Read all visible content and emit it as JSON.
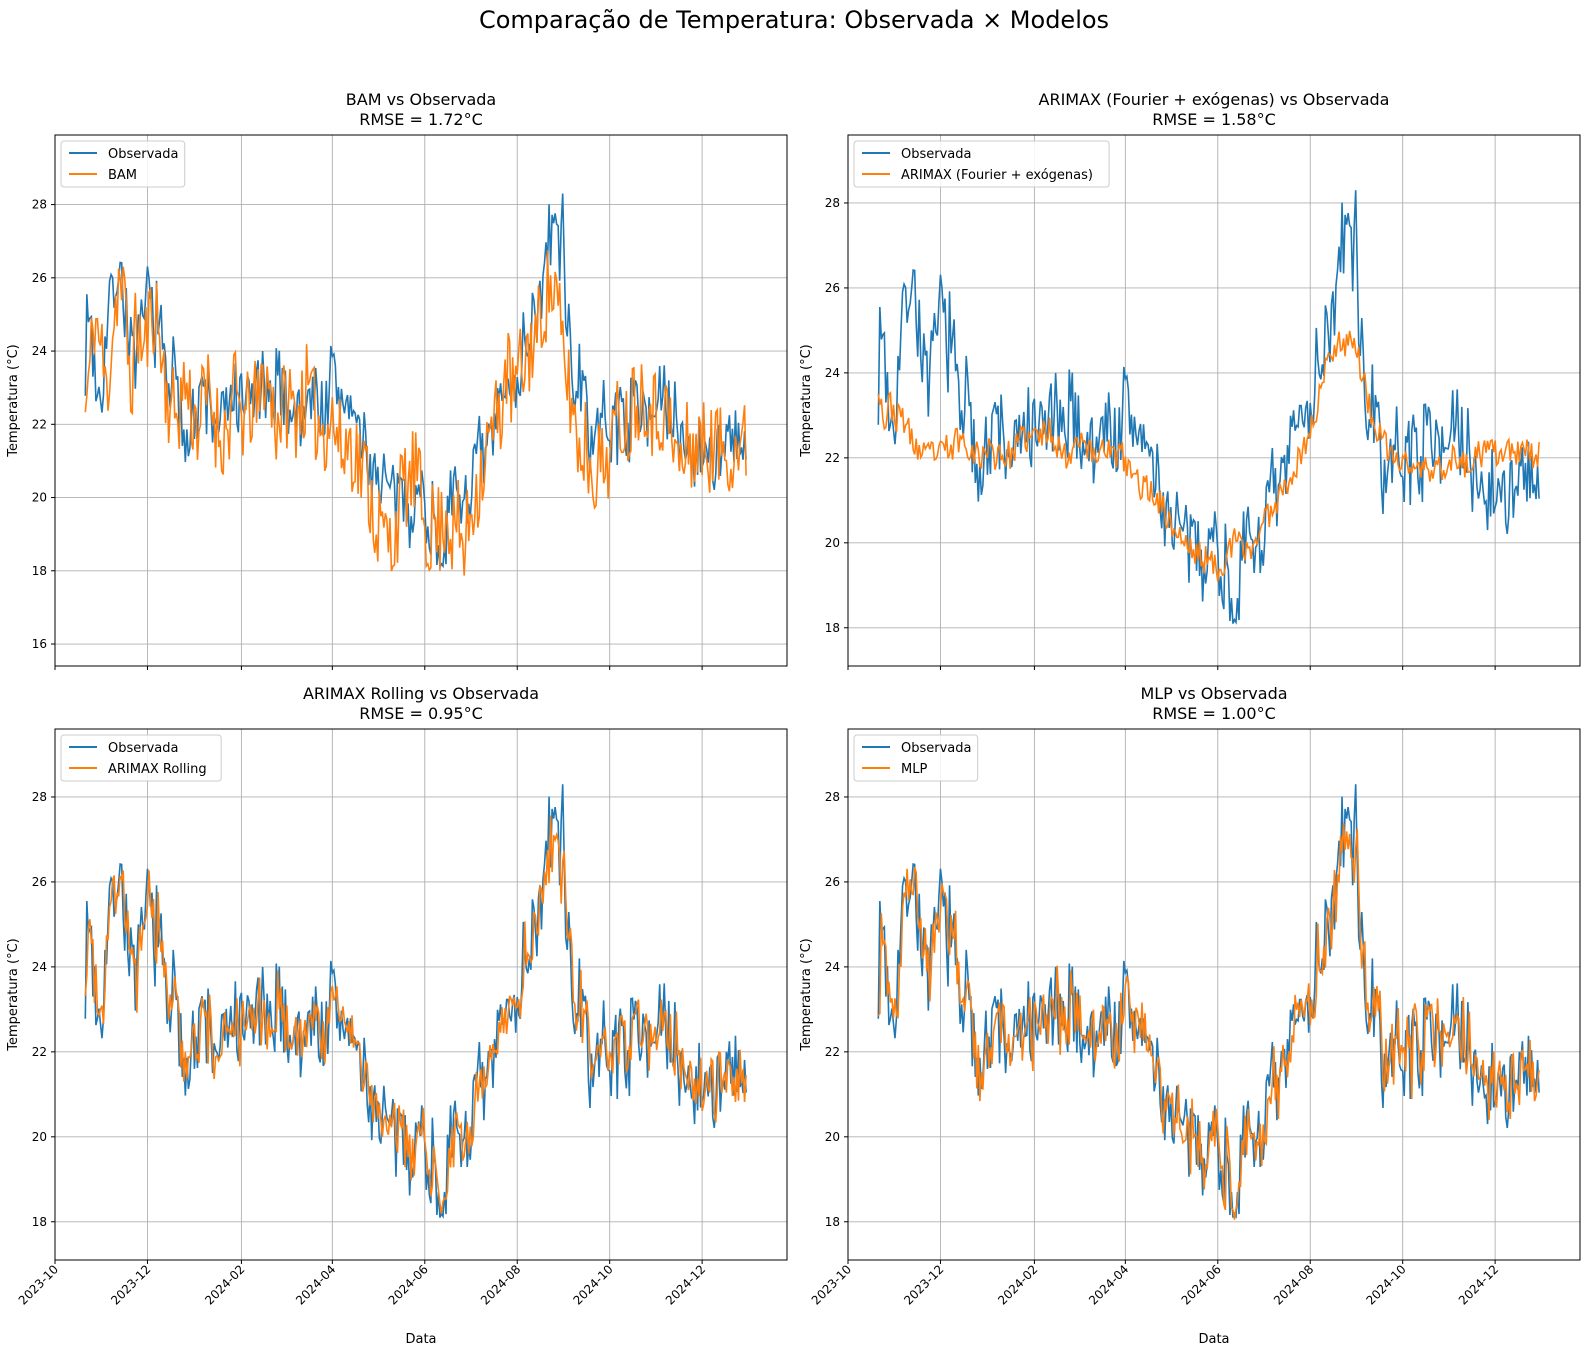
{
  "figure": {
    "title": "Comparação de Temperatura: Observada × Modelos",
    "colors": {
      "observed": "#1f77b4",
      "model": "#ff7f0e",
      "grid": "#b0b0b0"
    }
  },
  "chart_data": [
    {
      "type": "line",
      "title": "BAM vs Observada",
      "subtitle": "RMSE = 1.72°C",
      "xlabel": "",
      "ylabel": "Temperatura (°C)",
      "xlim": [
        "2023-10-01",
        "2025-01-26"
      ],
      "ylim": [
        15.4,
        29.9
      ],
      "yticks": [
        16,
        18,
        20,
        22,
        24,
        26,
        28
      ],
      "xticks": [
        "2023-10",
        "2023-12",
        "2024-02",
        "2024-04",
        "2024-06",
        "2024-08",
        "2024-10",
        "2024-12"
      ],
      "grid": true,
      "legend_position": "top-left",
      "legend": [
        "Observada",
        "BAM"
      ],
      "model_series_name": "BAM",
      "x_start": "2023-10-21",
      "x_end": "2024-12-30",
      "observed_anchors": [
        [
          0,
          24.1
        ],
        [
          3,
          25.2
        ],
        [
          6,
          23.5
        ],
        [
          10,
          22.8
        ],
        [
          14,
          24.5
        ],
        [
          18,
          25.8
        ],
        [
          22,
          26.3
        ],
        [
          26,
          25.4
        ],
        [
          30,
          24.2
        ],
        [
          34,
          23.5
        ],
        [
          38,
          24.8
        ],
        [
          42,
          25.6
        ],
        [
          46,
          24.9
        ],
        [
          50,
          24.4
        ],
        [
          54,
          22.9
        ],
        [
          58,
          23.5
        ],
        [
          62,
          22.1
        ],
        [
          66,
          21.8
        ],
        [
          70,
          22.6
        ],
        [
          74,
          22.0
        ],
        [
          78,
          23.1
        ],
        [
          82,
          22.4
        ],
        [
          86,
          21.8
        ],
        [
          90,
          22.3
        ],
        [
          94,
          22.1
        ],
        [
          98,
          23.0
        ],
        [
          102,
          22.2
        ],
        [
          106,
          22.8
        ],
        [
          110,
          22.5
        ],
        [
          114,
          23.2
        ],
        [
          118,
          22.8
        ],
        [
          122,
          22.0
        ],
        [
          126,
          23.5
        ],
        [
          130,
          23.0
        ],
        [
          134,
          22.5
        ],
        [
          138,
          22.4
        ],
        [
          142,
          22.1
        ],
        [
          146,
          22.6
        ],
        [
          150,
          23.0
        ],
        [
          154,
          22.5
        ],
        [
          158,
          22.4
        ],
        [
          162,
          23.2
        ],
        [
          166,
          23.0
        ],
        [
          170,
          22.5
        ],
        [
          174,
          22.8
        ],
        [
          178,
          21.9
        ],
        [
          182,
          21.6
        ],
        [
          186,
          21.1
        ],
        [
          190,
          20.8
        ],
        [
          194,
          20.6
        ],
        [
          198,
          20.3
        ],
        [
          202,
          19.8
        ],
        [
          206,
          20.0
        ],
        [
          210,
          20.1
        ],
        [
          214,
          19.7
        ],
        [
          218,
          19.9
        ],
        [
          222,
          20.2
        ],
        [
          226,
          19.5
        ],
        [
          230,
          19.2
        ],
        [
          234,
          18.8
        ],
        [
          238,
          19.1
        ],
        [
          242,
          19.5
        ],
        [
          246,
          20.2
        ],
        [
          250,
          19.9
        ],
        [
          254,
          20.4
        ],
        [
          258,
          20.8
        ],
        [
          262,
          21.2
        ],
        [
          266,
          21.9
        ],
        [
          270,
          22.4
        ],
        [
          274,
          22.5
        ],
        [
          278,
          22.8
        ],
        [
          282,
          23.4
        ],
        [
          286,
          23.2
        ],
        [
          290,
          24.4
        ],
        [
          294,
          24.7
        ],
        [
          298,
          25.2
        ],
        [
          302,
          25.9
        ],
        [
          306,
          26.2
        ],
        [
          310,
          26.3
        ],
        [
          314,
          25.1
        ],
        [
          318,
          24.5
        ],
        [
          322,
          23.5
        ],
        [
          326,
          22.9
        ],
        [
          330,
          22.4
        ],
        [
          334,
          21.8
        ],
        [
          338,
          21.7
        ],
        [
          342,
          22.1
        ],
        [
          346,
          21.9
        ],
        [
          350,
          22.2
        ],
        [
          354,
          22.4
        ],
        [
          358,
          22.0
        ],
        [
          362,
          22.5
        ],
        [
          366,
          22.8
        ],
        [
          370,
          22.7
        ],
        [
          374,
          22.3
        ],
        [
          378,
          22.6
        ],
        [
          382,
          22.4
        ],
        [
          386,
          22.1
        ],
        [
          390,
          21.9
        ],
        [
          392,
          21.8
        ],
        [
          395,
          21.7
        ],
        [
          397,
          21.3
        ]
      ],
      "model_anchors": [
        [
          0,
          22.3
        ],
        [
          3,
          23.5
        ],
        [
          6,
          25.0
        ],
        [
          10,
          24.2
        ],
        [
          14,
          22.8
        ],
        [
          18,
          24.6
        ],
        [
          22,
          26.0
        ],
        [
          26,
          25.2
        ],
        [
          30,
          23.0
        ],
        [
          34,
          24.8
        ],
        [
          38,
          23.9
        ],
        [
          42,
          24.7
        ],
        [
          46,
          25.3
        ],
        [
          50,
          24.0
        ],
        [
          54,
          22.8
        ],
        [
          58,
          22.3
        ],
        [
          62,
          22.5
        ],
        [
          66,
          23.2
        ],
        [
          70,
          22.4
        ],
        [
          74,
          22.0
        ],
        [
          78,
          22.6
        ],
        [
          82,
          22.9
        ],
        [
          86,
          22.1
        ],
        [
          90,
          21.7
        ],
        [
          94,
          21.8
        ],
        [
          98,
          22.9
        ],
        [
          102,
          22.4
        ],
        [
          106,
          22.0
        ],
        [
          110,
          22.6
        ],
        [
          114,
          22.4
        ],
        [
          118,
          23.5
        ],
        [
          122,
          22.8
        ],
        [
          126,
          22.1
        ],
        [
          130,
          22.4
        ],
        [
          134,
          22.7
        ],
        [
          138,
          22.3
        ],
        [
          142,
          22.6
        ],
        [
          146,
          22.9
        ],
        [
          150,
          22.4
        ],
        [
          154,
          22.0
        ],
        [
          158,
          21.9
        ],
        [
          162,
          22.3
        ],
        [
          166,
          21.7
        ],
        [
          170,
          21.2
        ],
        [
          174,
          21.6
        ],
        [
          178,
          21.3
        ],
        [
          182,
          20.8
        ],
        [
          186,
          20.6
        ],
        [
          190,
          19.6
        ],
        [
          194,
          19.2
        ],
        [
          198,
          18.9
        ],
        [
          202,
          18.7
        ],
        [
          206,
          19.5
        ],
        [
          210,
          20.4
        ],
        [
          214,
          20.3
        ],
        [
          218,
          20.8
        ],
        [
          222,
          19.7
        ],
        [
          226,
          19.0
        ],
        [
          230,
          19.3
        ],
        [
          234,
          19.1
        ],
        [
          238,
          19.8
        ],
        [
          242,
          19.0
        ],
        [
          246,
          19.2
        ],
        [
          250,
          18.5
        ],
        [
          254,
          19.6
        ],
        [
          258,
          20.3
        ],
        [
          262,
          20.8
        ],
        [
          266,
          21.5
        ],
        [
          270,
          22.0
        ],
        [
          274,
          22.4
        ],
        [
          278,
          23.6
        ],
        [
          282,
          22.8
        ],
        [
          286,
          23.3
        ],
        [
          290,
          23.7
        ],
        [
          294,
          24.2
        ],
        [
          298,
          24.4
        ],
        [
          302,
          25.3
        ],
        [
          306,
          25.7
        ],
        [
          310,
          25.6
        ],
        [
          314,
          24.3
        ],
        [
          318,
          23.2
        ],
        [
          322,
          22.4
        ],
        [
          326,
          21.2
        ],
        [
          330,
          21.6
        ],
        [
          334,
          20.7
        ],
        [
          338,
          21.0
        ],
        [
          342,
          20.8
        ],
        [
          346,
          21.4
        ],
        [
          350,
          21.9
        ],
        [
          354,
          22.3
        ],
        [
          358,
          21.9
        ],
        [
          362,
          22.9
        ],
        [
          366,
          22.8
        ],
        [
          370,
          23.0
        ],
        [
          374,
          22.4
        ],
        [
          378,
          22.2
        ],
        [
          382,
          22.6
        ],
        [
          386,
          21.8
        ],
        [
          390,
          21.1
        ],
        [
          392,
          21.0
        ],
        [
          395,
          20.9
        ],
        [
          397,
          21.4
        ]
      ],
      "model_noise": 1.3,
      "model_seed": 11
    },
    {
      "type": "line",
      "title": "ARIMAX (Fourier + exógenas) vs Observada",
      "subtitle": "RMSE = 1.58°C",
      "xlabel": "",
      "ylabel": "Temperatura (°C)",
      "xlim": [
        "2023-10-01",
        "2025-01-26"
      ],
      "ylim": [
        17.1,
        29.6
      ],
      "yticks": [
        18,
        20,
        22,
        24,
        26,
        28
      ],
      "xticks": [
        "2023-10",
        "2023-12",
        "2024-02",
        "2024-04",
        "2024-06",
        "2024-08",
        "2024-10",
        "2024-12"
      ],
      "grid": true,
      "legend_position": "top-left",
      "legend": [
        "Observada",
        "ARIMAX (Fourier + exógenas)"
      ],
      "model_series_name": "ARIMAX (Fourier + exógenas)",
      "x_start": "2023-10-21",
      "x_end": "2024-12-30",
      "model_anchors": [
        [
          0,
          23.8
        ],
        [
          4,
          22.8
        ],
        [
          8,
          23.3
        ],
        [
          12,
          22.9
        ],
        [
          16,
          23.0
        ],
        [
          20,
          22.6
        ],
        [
          24,
          22.3
        ],
        [
          28,
          22.1
        ],
        [
          32,
          22.0
        ],
        [
          36,
          22.2
        ],
        [
          40,
          22.0
        ],
        [
          44,
          22.3
        ],
        [
          48,
          22.1
        ],
        [
          52,
          22.5
        ],
        [
          56,
          22.4
        ],
        [
          60,
          22.3
        ],
        [
          64,
          22.1
        ],
        [
          68,
          22.0
        ],
        [
          72,
          22.3
        ],
        [
          76,
          22.0
        ],
        [
          80,
          22.2
        ],
        [
          84,
          22.0
        ],
        [
          88,
          22.1
        ],
        [
          92,
          22.3
        ],
        [
          96,
          22.5
        ],
        [
          100,
          22.4
        ],
        [
          104,
          22.6
        ],
        [
          108,
          22.5
        ],
        [
          112,
          22.7
        ],
        [
          116,
          22.5
        ],
        [
          120,
          22.2
        ],
        [
          124,
          22.0
        ],
        [
          128,
          22.2
        ],
        [
          132,
          22.6
        ],
        [
          136,
          22.4
        ],
        [
          140,
          22.1
        ],
        [
          144,
          22.0
        ],
        [
          148,
          22.4
        ],
        [
          152,
          22.2
        ],
        [
          156,
          22.0
        ],
        [
          160,
          22.1
        ],
        [
          164,
          21.8
        ],
        [
          168,
          21.6
        ],
        [
          172,
          21.4
        ],
        [
          176,
          21.3
        ],
        [
          180,
          21.2
        ],
        [
          184,
          21.1
        ],
        [
          188,
          20.8
        ],
        [
          192,
          20.5
        ],
        [
          196,
          20.3
        ],
        [
          200,
          20.1
        ],
        [
          204,
          19.9
        ],
        [
          208,
          19.8
        ],
        [
          212,
          19.7
        ],
        [
          216,
          19.6
        ],
        [
          220,
          19.5
        ],
        [
          224,
          19.4
        ],
        [
          228,
          19.6
        ],
        [
          232,
          19.8
        ],
        [
          236,
          20.1
        ],
        [
          240,
          19.9
        ],
        [
          244,
          19.8
        ],
        [
          248,
          20.0
        ],
        [
          252,
          20.3
        ],
        [
          256,
          20.6
        ],
        [
          260,
          20.8
        ],
        [
          264,
          21.1
        ],
        [
          268,
          21.4
        ],
        [
          272,
          21.6
        ],
        [
          276,
          21.8
        ],
        [
          280,
          22.2
        ],
        [
          284,
          22.5
        ],
        [
          288,
          23.0
        ],
        [
          292,
          23.6
        ],
        [
          296,
          24.2
        ],
        [
          300,
          24.6
        ],
        [
          304,
          24.8
        ],
        [
          308,
          24.7
        ],
        [
          312,
          24.9
        ],
        [
          316,
          24.5
        ],
        [
          320,
          23.8
        ],
        [
          324,
          23.2
        ],
        [
          328,
          22.7
        ],
        [
          332,
          22.4
        ],
        [
          336,
          22.2
        ],
        [
          340,
          22.0
        ],
        [
          344,
          21.9
        ],
        [
          348,
          21.9
        ],
        [
          352,
          21.8
        ],
        [
          356,
          21.7
        ],
        [
          360,
          21.8
        ],
        [
          364,
          21.6
        ],
        [
          368,
          21.7
        ],
        [
          372,
          21.8
        ],
        [
          376,
          21.9
        ],
        [
          380,
          22.0
        ],
        [
          384,
          21.8
        ],
        [
          388,
          21.9
        ],
        [
          392,
          21.8
        ],
        [
          395,
          22.0
        ],
        [
          397,
          22.1
        ]
      ],
      "model_noise": 0.35,
      "model_seed": 23
    },
    {
      "type": "line",
      "title": "ARIMAX Rolling vs Observada",
      "subtitle": "RMSE = 0.95°C",
      "xlabel": "Data",
      "ylabel": "Temperatura (°C)",
      "xlim": [
        "2023-10-01",
        "2025-01-26"
      ],
      "ylim": [
        17.1,
        29.6
      ],
      "yticks": [
        18,
        20,
        22,
        24,
        26,
        28
      ],
      "xticks": [
        "2023-10",
        "2023-12",
        "2024-02",
        "2024-04",
        "2024-06",
        "2024-08",
        "2024-10",
        "2024-12"
      ],
      "grid": true,
      "legend_position": "top-left",
      "legend": [
        "Observada",
        "ARIMAX Rolling"
      ],
      "model_series_name": "ARIMAX Rolling",
      "x_start": "2023-10-21",
      "x_end": "2024-12-30",
      "model_lag": 1,
      "model_blend": 0.6,
      "model_noise": 0.35,
      "model_seed": 37
    },
    {
      "type": "line",
      "title": "MLP vs Observada",
      "subtitle": "RMSE = 1.00°C",
      "xlabel": "Data",
      "ylabel": "Temperatura (°C)",
      "xlim": [
        "2023-10-01",
        "2025-01-26"
      ],
      "ylim": [
        17.1,
        29.6
      ],
      "yticks": [
        18,
        20,
        22,
        24,
        26,
        28
      ],
      "xticks": [
        "2023-10",
        "2023-12",
        "2024-02",
        "2024-04",
        "2024-06",
        "2024-08",
        "2024-10",
        "2024-12"
      ],
      "grid": true,
      "legend_position": "top-left",
      "legend": [
        "Observada",
        "MLP"
      ],
      "model_series_name": "MLP",
      "x_start": "2023-10-21",
      "x_end": "2024-12-30",
      "model_lag": 1,
      "model_blend": 0.7,
      "model_noise": 0.45,
      "model_seed": 51
    }
  ]
}
